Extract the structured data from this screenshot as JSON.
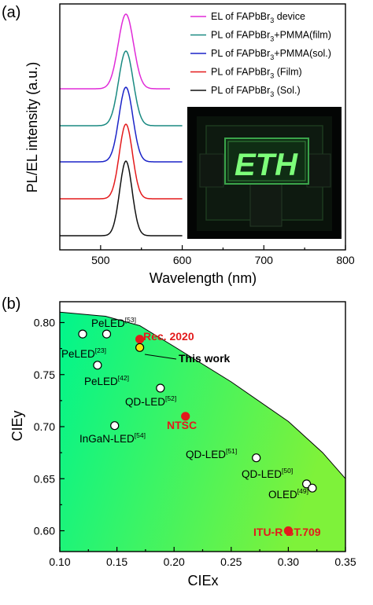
{
  "panels": {
    "a_label": "(a)",
    "b_label": "(b)"
  },
  "chart_data": [
    {
      "type": "line",
      "xlabel": "Wavelength (nm)",
      "ylabel": "PL/EL intensity (a.u.)",
      "xlim": [
        450,
        800
      ],
      "xticks": [
        500,
        600,
        700,
        800
      ],
      "legend_position": "top-right",
      "peak_nm": 531,
      "series": [
        {
          "name": "EL of FAPbBr3 device",
          "label_main": "EL of FAPbBr",
          "label_sub": "3",
          "label_after": " device",
          "color": "#e02bd8",
          "x_range": [
            450,
            585
          ],
          "fwhm_nm": 22
        },
        {
          "name": "PL of FAPbBr3+PMMA(film)",
          "label_main": "PL of FAPbBr",
          "label_sub": "3",
          "label_after": "+PMMA(film)",
          "color": "#1a8a82",
          "x_range": [
            450,
            600
          ],
          "fwhm_nm": 21
        },
        {
          "name": "PL of FAPbBr3+PMMA(sol.)",
          "label_main": "PL of FAPbBr",
          "label_sub": "3",
          "label_after": "+PMMA(sol.)",
          "color": "#1b24c8",
          "x_range": [
            450,
            600
          ],
          "fwhm_nm": 20
        },
        {
          "name": "PL of FAPbBr3 (Film)",
          "label_main": "PL of FAPbBr",
          "label_sub": "3",
          "label_after": " (Film)",
          "color": "#e41a1c",
          "x_range": [
            450,
            600
          ],
          "fwhm_nm": 19
        },
        {
          "name": "PL of FAPbBr3 (Sol.)",
          "label_main": "PL of FAPbBr",
          "label_sub": "3",
          "label_after": " (Sol.)",
          "color": "#111111",
          "x_range": [
            450,
            600
          ],
          "fwhm_nm": 18
        }
      ],
      "inset_text": "ETH"
    },
    {
      "type": "scatter",
      "xlabel": "CIEx",
      "ylabel": "CIEy",
      "xlim": [
        0.1,
        0.35
      ],
      "ylim": [
        0.58,
        0.82
      ],
      "xticks": [
        "0.10",
        "0.15",
        "0.20",
        "0.25",
        "0.30",
        "0.35"
      ],
      "yticks": [
        "0.60",
        "0.65",
        "0.70",
        "0.75",
        "0.80"
      ],
      "points": [
        {
          "x": 0.12,
          "y": 0.789,
          "style": "white",
          "label": "",
          "sup": ""
        },
        {
          "x": 0.141,
          "y": 0.789,
          "style": "white",
          "label": "",
          "sup": ""
        },
        {
          "x": 0.133,
          "y": 0.759,
          "style": "white",
          "label": "",
          "sup": ""
        },
        {
          "x": 0.188,
          "y": 0.737,
          "style": "white",
          "label": "",
          "sup": ""
        },
        {
          "x": 0.148,
          "y": 0.701,
          "style": "white",
          "label": "",
          "sup": ""
        },
        {
          "x": 0.17,
          "y": 0.784,
          "style": "red",
          "label": "",
          "sup": ""
        },
        {
          "x": 0.17,
          "y": 0.776,
          "style": "yellow",
          "label": "",
          "sup": ""
        },
        {
          "x": 0.21,
          "y": 0.71,
          "style": "red",
          "label": "",
          "sup": ""
        },
        {
          "x": 0.272,
          "y": 0.67,
          "style": "white",
          "label": "",
          "sup": ""
        },
        {
          "x": 0.316,
          "y": 0.645,
          "style": "white",
          "label": "",
          "sup": ""
        },
        {
          "x": 0.321,
          "y": 0.641,
          "style": "white",
          "label": "",
          "sup": ""
        },
        {
          "x": 0.3,
          "y": 0.6,
          "style": "red",
          "label": "",
          "sup": ""
        }
      ],
      "annotations": [
        {
          "text": "PeLED",
          "sup": "[53]",
          "color": "black"
        },
        {
          "text": "PeLED",
          "sup": "[23]",
          "color": "black"
        },
        {
          "text": "PeLED",
          "sup": "[42]",
          "color": "black"
        },
        {
          "text": "QD-LED",
          "sup": "[52]",
          "color": "black"
        },
        {
          "text": "InGaN-LED",
          "sup": "[54]",
          "color": "black"
        },
        {
          "text": "QD-LED",
          "sup": "[51]",
          "color": "black"
        },
        {
          "text": "QD-LED",
          "sup": "[50]",
          "color": "black"
        },
        {
          "text": "OLED",
          "sup": "[49]",
          "color": "black"
        },
        {
          "text": "Rec. 2020",
          "sup": "",
          "color": "red"
        },
        {
          "text": "This work",
          "sup": "",
          "color": "black"
        },
        {
          "text": "NTSC",
          "sup": "",
          "color": "red"
        },
        {
          "text": "ITU-R BT.709",
          "sup": "",
          "color": "red"
        }
      ],
      "gradient_colors": [
        "#00f58c",
        "#7ef23a"
      ]
    }
  ]
}
